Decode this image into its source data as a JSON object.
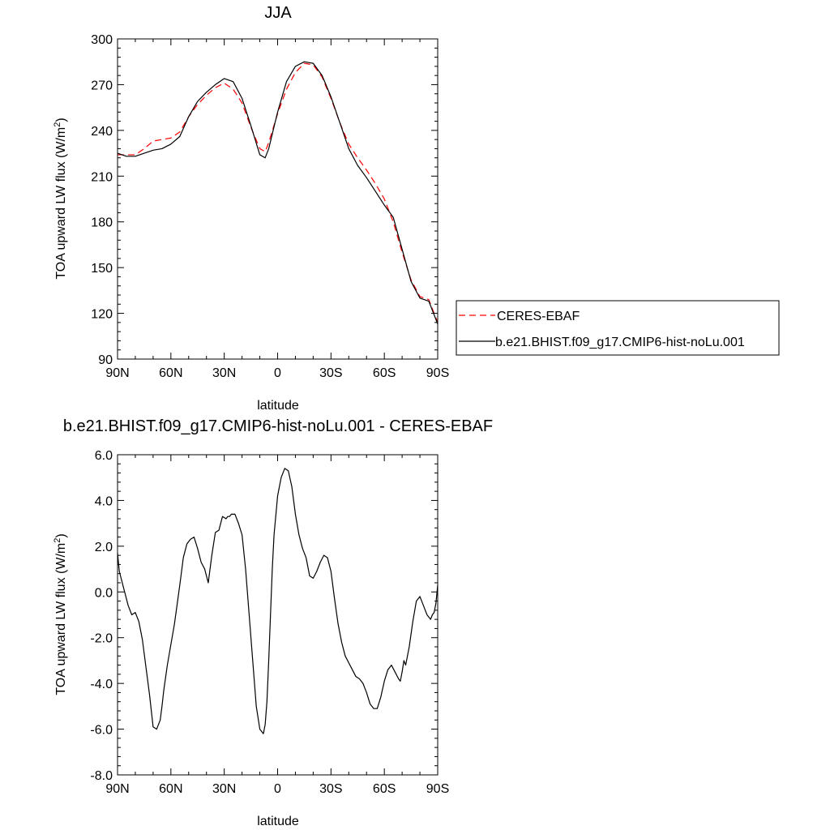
{
  "chart_data": [
    {
      "type": "line",
      "title": "JJA",
      "xlabel": "latitude",
      "ylabel": "TOA upward LW flux (W/m",
      "ylabel_sup": "2",
      "ylabel_close": ")",
      "xlim": [
        -90,
        90
      ],
      "ylim": [
        90,
        300
      ],
      "x_ticks": [
        -90,
        -60,
        -30,
        0,
        30,
        60,
        90
      ],
      "x_tick_labels": [
        "90N",
        "60N",
        "30N",
        "0",
        "30S",
        "60S",
        "90S"
      ],
      "y_ticks": [
        90,
        120,
        150,
        180,
        210,
        240,
        270,
        300
      ],
      "y_tick_labels": [
        "90",
        "120",
        "150",
        "180",
        "210",
        "240",
        "270",
        "300"
      ],
      "grid": false,
      "legend_position": "right",
      "series": [
        {
          "name": "CERES-EBAF",
          "color": "#ff0000",
          "dash": "dashed",
          "x": [
            -90,
            -85,
            -80,
            -75,
            -70,
            -65,
            -60,
            -55,
            -50,
            -45,
            -40,
            -35,
            -30,
            -25,
            -20,
            -15,
            -10,
            -7,
            -5,
            0,
            5,
            10,
            15,
            20,
            25,
            30,
            35,
            40,
            45,
            50,
            55,
            60,
            65,
            70,
            75,
            80,
            85,
            90
          ],
          "y": [
            224,
            224,
            224,
            228,
            233,
            234,
            235,
            239,
            249,
            257,
            263,
            268,
            271,
            267,
            258,
            242,
            228,
            226,
            232,
            251,
            267,
            278,
            284,
            283,
            275,
            261,
            245,
            231,
            222,
            214,
            205,
            195,
            180,
            160,
            142,
            131,
            129,
            114
          ]
        },
        {
          "name": "b.e21.BHIST.f09_g17.CMIP6-hist-noLu.001",
          "color": "#000000",
          "dash": "solid",
          "x": [
            -90,
            -85,
            -80,
            -75,
            -70,
            -65,
            -60,
            -55,
            -50,
            -45,
            -40,
            -35,
            -30,
            -25,
            -20,
            -15,
            -10,
            -7,
            -5,
            0,
            5,
            10,
            15,
            20,
            25,
            30,
            35,
            40,
            45,
            50,
            55,
            60,
            65,
            70,
            75,
            80,
            85,
            90
          ],
          "y": [
            225,
            223,
            223,
            225,
            227,
            228,
            231,
            236,
            249,
            259,
            265,
            270,
            274,
            272,
            261,
            243,
            224,
            222,
            228,
            252,
            272,
            282,
            285,
            284,
            276,
            262,
            245,
            228,
            217,
            209,
            200,
            191,
            183,
            162,
            141,
            130,
            128,
            113
          ]
        }
      ]
    },
    {
      "type": "line",
      "title": "b.e21.BHIST.f09_g17.CMIP6-hist-noLu.001 - CERES-EBAF",
      "xlabel": "latitude",
      "ylabel": "TOA upward LW flux (W/m",
      "ylabel_sup": "2",
      "ylabel_close": ")",
      "xlim": [
        -90,
        90
      ],
      "ylim": [
        -8,
        6
      ],
      "x_ticks": [
        -90,
        -60,
        -30,
        0,
        30,
        60,
        90
      ],
      "x_tick_labels": [
        "90N",
        "60N",
        "30N",
        "0",
        "30S",
        "60S",
        "90S"
      ],
      "y_ticks": [
        -8,
        -6,
        -4,
        -2,
        0,
        2,
        4,
        6
      ],
      "y_tick_labels": [
        "-8.0",
        "-6.0",
        "-4.0",
        "-2.0",
        "0.0",
        "2.0",
        "4.0",
        "6.0"
      ],
      "grid": false,
      "series": [
        {
          "color": "#000000",
          "dash": "solid",
          "x": [
            -90,
            -89,
            -88,
            -86,
            -84,
            -82,
            -80,
            -78,
            -76,
            -74,
            -72,
            -70,
            -68,
            -67,
            -66,
            -65,
            -64,
            -62,
            -60,
            -58,
            -55,
            -53,
            -51,
            -49,
            -47,
            -45,
            -43,
            -41,
            -39,
            -37,
            -35,
            -33,
            -31,
            -29,
            -28,
            -27,
            -26,
            -25,
            -24,
            -22,
            -20,
            -18,
            -16,
            -14,
            -12,
            -10,
            -8,
            -7,
            -6,
            -5,
            -4,
            -3,
            -2,
            0,
            2,
            4,
            6,
            8,
            10,
            12,
            14,
            16,
            18,
            20,
            22,
            24,
            26,
            28,
            30,
            32,
            34,
            36,
            38,
            40,
            42,
            44,
            46,
            48,
            50,
            52,
            54,
            56,
            58,
            60,
            62,
            64,
            66,
            68,
            69,
            70,
            71,
            72,
            74,
            76,
            78,
            80,
            82,
            84,
            86,
            87,
            88,
            89,
            90
          ],
          "y": [
            1.7,
            0.9,
            0.6,
            0.0,
            -0.6,
            -1.0,
            -0.9,
            -1.3,
            -2.1,
            -3.3,
            -4.5,
            -5.9,
            -6.0,
            -5.8,
            -5.6,
            -5.0,
            -4.3,
            -3.2,
            -2.3,
            -1.4,
            0.3,
            1.5,
            2.1,
            2.3,
            2.4,
            1.9,
            1.3,
            1.0,
            0.4,
            1.6,
            2.6,
            2.7,
            3.3,
            3.2,
            3.3,
            3.3,
            3.4,
            3.4,
            3.4,
            3.0,
            2.5,
            1.0,
            -1.0,
            -3.0,
            -5.0,
            -6.0,
            -6.2,
            -5.8,
            -4.8,
            -3.0,
            -1.0,
            1.0,
            2.5,
            4.2,
            5.0,
            5.4,
            5.3,
            4.6,
            3.4,
            2.5,
            1.9,
            1.5,
            0.7,
            0.6,
            0.9,
            1.3,
            1.6,
            1.5,
            0.9,
            -0.3,
            -1.4,
            -2.2,
            -2.8,
            -3.1,
            -3.4,
            -3.7,
            -3.8,
            -4.0,
            -4.4,
            -4.9,
            -5.1,
            -5.1,
            -4.6,
            -3.9,
            -3.4,
            -3.2,
            -3.5,
            -3.8,
            -3.9,
            -3.5,
            -3.0,
            -3.2,
            -2.4,
            -1.3,
            -0.4,
            -0.2,
            -0.6,
            -1.0,
            -1.2,
            -1.0,
            -0.9,
            -0.5,
            0.3
          ]
        }
      ]
    }
  ]
}
